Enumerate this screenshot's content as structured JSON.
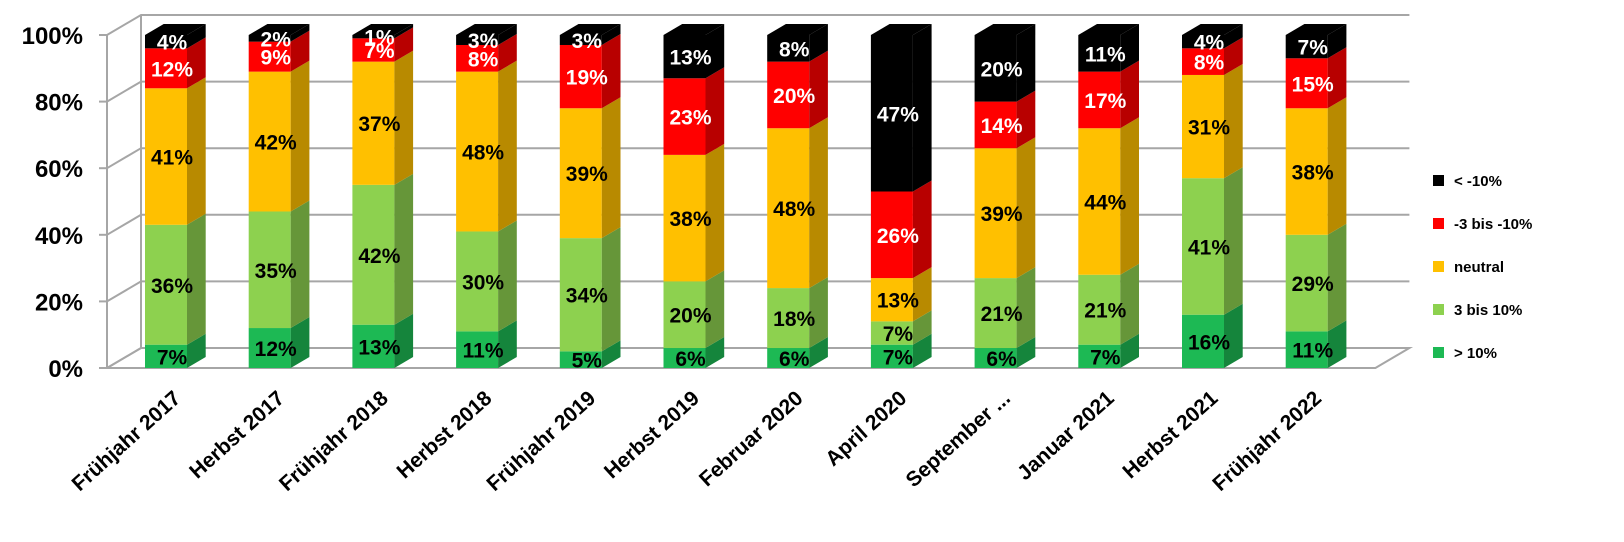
{
  "chart_data": {
    "type": "bar",
    "stacked": true,
    "percent_stacked": true,
    "three_d": true,
    "title": "",
    "xlabel": "",
    "ylabel": "",
    "ylim": [
      0,
      100
    ],
    "y_ticks": [
      "0%",
      "20%",
      "40%",
      "60%",
      "80%",
      "100%"
    ],
    "grid": true,
    "legend_position": "right",
    "categories": [
      "Frühjahr 2017",
      "Herbst 2017",
      "Frühjahr 2018",
      "Herbst 2018",
      "Frühjahr 2019",
      "Herbst 2019",
      "Februar 2020",
      "April 2020",
      "September ...",
      "Januar 2021",
      "Herbst 2021",
      "Frühjahr 2022"
    ],
    "series": [
      {
        "name": "> 10%",
        "color": "#1DB954",
        "label_color": "#000000",
        "values": [
          7,
          12,
          13,
          11,
          5,
          6,
          6,
          7,
          6,
          7,
          16,
          11
        ]
      },
      {
        "name": "3 bis 10%",
        "color": "#8DD14F",
        "label_color": "#000000",
        "values": [
          36,
          35,
          42,
          30,
          34,
          20,
          18,
          7,
          21,
          21,
          41,
          29
        ]
      },
      {
        "name": "neutral",
        "color": "#FFC000",
        "label_color": "#000000",
        "values": [
          41,
          42,
          37,
          48,
          39,
          38,
          48,
          13,
          39,
          44,
          31,
          38
        ]
      },
      {
        "name": "-3 bis -10%",
        "color": "#FF0000",
        "label_color": "#FFFFFF",
        "values": [
          12,
          9,
          7,
          8,
          19,
          23,
          20,
          26,
          14,
          17,
          8,
          15
        ]
      },
      {
        "name": "< -10%",
        "color": "#000000",
        "label_color": "#FFFFFF",
        "values": [
          4,
          2,
          1,
          3,
          3,
          13,
          8,
          47,
          20,
          11,
          4,
          7
        ]
      }
    ],
    "data_labels": [
      [
        "7%",
        "12%",
        "13%",
        "11%",
        "5%",
        "6%",
        "6%",
        "7%",
        "6%",
        "7%",
        "16%",
        "11%"
      ],
      [
        "36%",
        "35%",
        "42%",
        "30%",
        "34%",
        "20%",
        "18%",
        "7%",
        "21%",
        "21%",
        "41%",
        "29%"
      ],
      [
        "41%",
        "42%",
        "37%",
        "48%",
        "39%",
        "38%",
        "48%",
        "13%",
        "39%",
        "44%",
        "31%",
        "38%"
      ],
      [
        "12%",
        "9%",
        "7%",
        "8%",
        "19%",
        "23%",
        "20%",
        "26%",
        "14%",
        "17%",
        "8%",
        "15%"
      ],
      [
        "4%",
        "2%",
        "1%",
        "3%",
        "3%",
        "13%",
        "8%",
        "47%",
        "20%",
        "11%",
        "4%",
        "7%"
      ]
    ],
    "legend_order": [
      4,
      3,
      2,
      1,
      0
    ]
  }
}
